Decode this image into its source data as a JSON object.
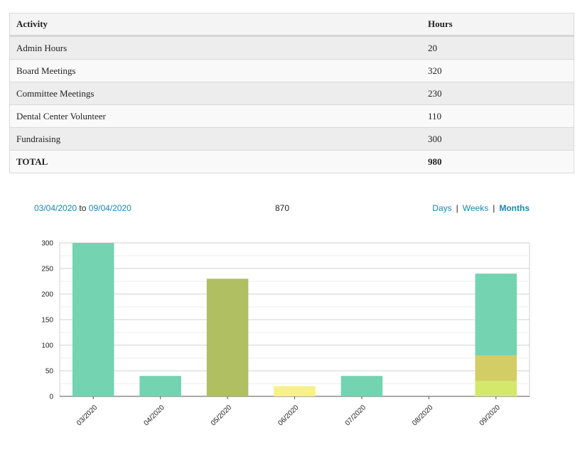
{
  "table": {
    "headers": [
      "Activity",
      "Hours"
    ],
    "rows": [
      {
        "activity": "Admin Hours",
        "hours": "20"
      },
      {
        "activity": "Board Meetings",
        "hours": "320"
      },
      {
        "activity": "Committee Meetings",
        "hours": "230"
      },
      {
        "activity": "Dental Center Volunteer",
        "hours": "110"
      },
      {
        "activity": "Fundraising",
        "hours": "300"
      }
    ],
    "total": {
      "label": "TOTAL",
      "hours": "980"
    }
  },
  "range": {
    "start": "03/04/2020",
    "to": "to",
    "end": "09/04/2020",
    "total": "870",
    "modes": [
      {
        "label": "Days",
        "active": false
      },
      {
        "label": "Weeks",
        "active": false
      },
      {
        "label": "Months",
        "active": true
      }
    ],
    "separator": "|"
  },
  "colors": {
    "link": "#1c86b3",
    "grid": "#d0d0d0",
    "axis": "#555555"
  },
  "chart_data": {
    "type": "bar",
    "stacked": true,
    "categories": [
      "03/2020",
      "04/2020",
      "05/2020",
      "06/2020",
      "07/2020",
      "08/2020",
      "09/2020"
    ],
    "ylim": [
      0,
      300
    ],
    "yticks": [
      0,
      50,
      100,
      150,
      200,
      250,
      300
    ],
    "grid": true,
    "legend": "none",
    "series": [
      {
        "color": "#d4e86b",
        "values": [
          0,
          0,
          0,
          0,
          0,
          0,
          30
        ]
      },
      {
        "color": "#d2cd64",
        "values": [
          0,
          0,
          0,
          0,
          0,
          0,
          50
        ]
      },
      {
        "color": "#f7f08b",
        "values": [
          0,
          0,
          0,
          20,
          0,
          0,
          0
        ]
      },
      {
        "color": "#afbf61",
        "values": [
          0,
          0,
          230,
          0,
          0,
          0,
          0
        ]
      },
      {
        "color": "#74d3b1",
        "values": [
          300,
          40,
          0,
          0,
          40,
          0,
          160
        ]
      }
    ]
  }
}
